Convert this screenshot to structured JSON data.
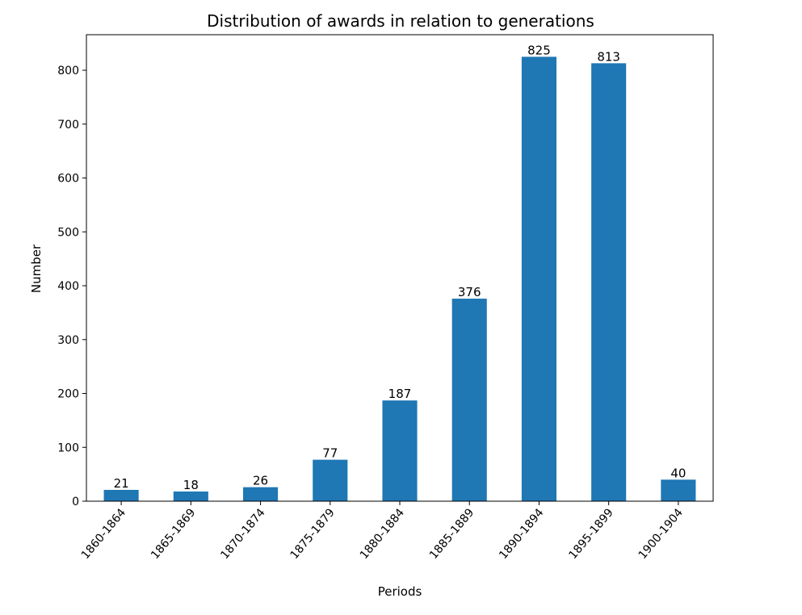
{
  "chart_data": {
    "type": "bar",
    "title": "Distribution of awards in relation to generations",
    "xlabel": "Periods",
    "ylabel": "Number",
    "categories": [
      "1860-1864",
      "1865-1869",
      "1870-1874",
      "1875-1879",
      "1880-1884",
      "1885-1889",
      "1890-1894",
      "1895-1899",
      "1900-1904"
    ],
    "values": [
      21,
      18,
      26,
      77,
      187,
      376,
      825,
      813,
      40
    ],
    "ylim": [
      0,
      866
    ],
    "yticks": [
      0,
      100,
      200,
      300,
      400,
      500,
      600,
      700,
      800
    ],
    "grid": false,
    "bar_color": "#1f77b4",
    "data_labels": true
  }
}
